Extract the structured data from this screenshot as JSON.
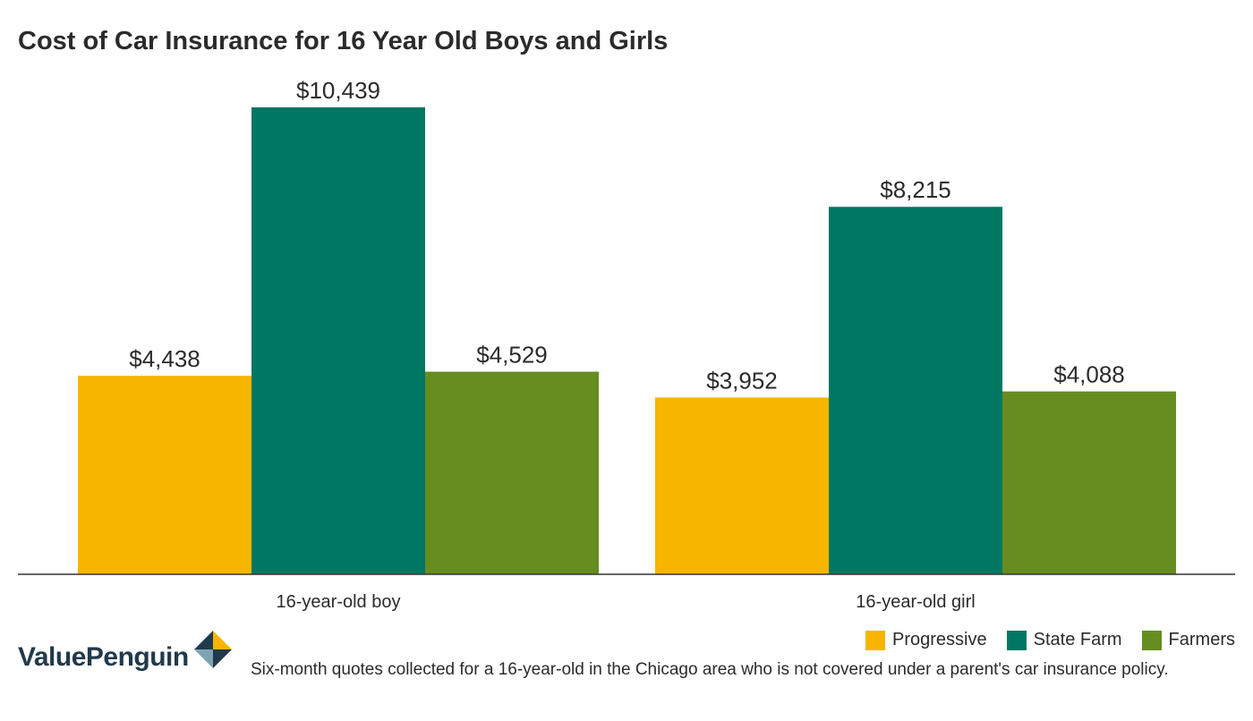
{
  "chart_data": {
    "type": "bar",
    "title": "Cost of Car Insurance for 16 Year Old Boys and Girls",
    "categories": [
      "16-year-old boy",
      "16-year-old girl"
    ],
    "series": [
      {
        "name": "Progressive",
        "color": "#f7b500",
        "values": [
          4438,
          3952
        ],
        "labels": [
          "$4,438",
          "$3,952"
        ]
      },
      {
        "name": "State Farm",
        "color": "#007763",
        "values": [
          10439,
          8215
        ],
        "labels": [
          "$10,439",
          "$8,215"
        ]
      },
      {
        "name": "Farmers",
        "color": "#668d1f",
        "values": [
          4529,
          4088
        ],
        "labels": [
          "$4,529",
          "$4,088"
        ]
      }
    ],
    "ylim": [
      0,
      11500
    ],
    "grid": false,
    "legend_position": "bottom-right"
  },
  "branding": {
    "logo_text": "ValuePenguin",
    "logo_icon": "valuepenguin-logo-icon"
  },
  "footnote": "Six-month quotes collected for a 16-year-old in the Chicago area who is not covered under a parent's car insurance policy."
}
